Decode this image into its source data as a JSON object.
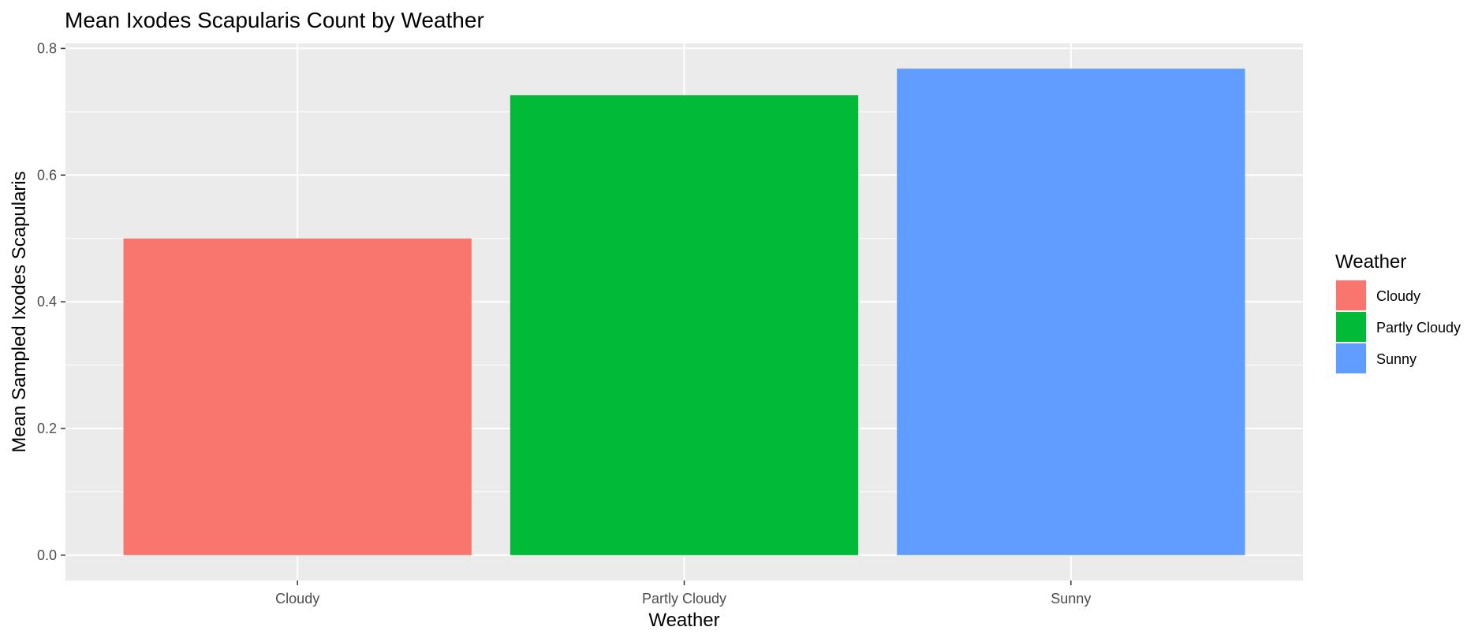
{
  "chart_data": {
    "type": "bar",
    "title": "Mean Ixodes Scapularis Count by Weather",
    "xlabel": "Weather",
    "ylabel": "Mean Sampled Ixodes Scapularis",
    "categories": [
      "Cloudy",
      "Partly Cloudy",
      "Sunny"
    ],
    "values": [
      0.5,
      0.726,
      0.768
    ],
    "colors": [
      "#F8766D",
      "#00BA38",
      "#619CFF"
    ],
    "ylim": [
      -0.04,
      0.808
    ],
    "yticks": [
      0.0,
      0.2,
      0.4,
      0.6,
      0.8
    ],
    "ytick_labels": [
      "0.0",
      "0.2",
      "0.4",
      "0.6",
      "0.8"
    ],
    "grid": true,
    "legend": {
      "title": "Weather",
      "placement": "right",
      "entries": [
        "Cloudy",
        "Partly Cloudy",
        "Sunny"
      ]
    },
    "panel_background": "#EBEBEB",
    "grid_color": "#FFFFFF"
  }
}
